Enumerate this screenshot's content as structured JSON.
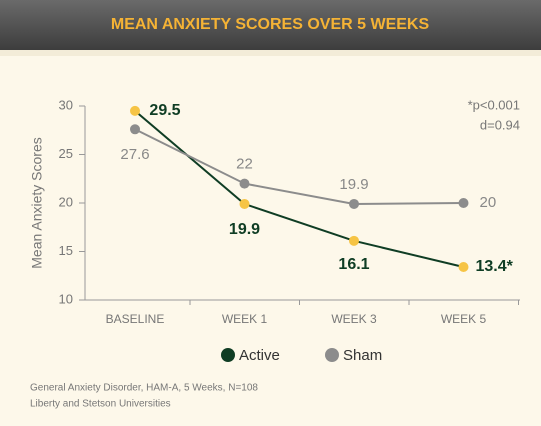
{
  "chart_data": {
    "type": "line",
    "title": "MEAN ANXIETY SCORES OVER 5 WEEKS",
    "ylabel": "Mean Anxiety Scores",
    "categories": [
      "BASELINE",
      "WEEK 1",
      "WEEK 3",
      "WEEK 5"
    ],
    "series": [
      {
        "name": "Active",
        "color": "#0f3d24",
        "marker_color": "#f6c445",
        "values": [
          29.5,
          19.9,
          16.1,
          13.4
        ],
        "value_labels": [
          "29.5",
          "19.9",
          "16.1",
          "13.4*"
        ]
      },
      {
        "name": "Sham",
        "color": "#8c8c8c",
        "marker_color": "#8c8c8c",
        "values": [
          27.6,
          22,
          19.9,
          20
        ]
      }
    ],
    "ylim": [
      10,
      30
    ],
    "yticks": [
      10,
      15,
      20,
      25,
      30
    ],
    "annotations": [
      "*p<0.001",
      "d=0.94"
    ],
    "footnotes": [
      "General Anxiety Disorder, HAM-A, 5 Weeks, N=108",
      "Liberty and Stetson Universities"
    ]
  }
}
